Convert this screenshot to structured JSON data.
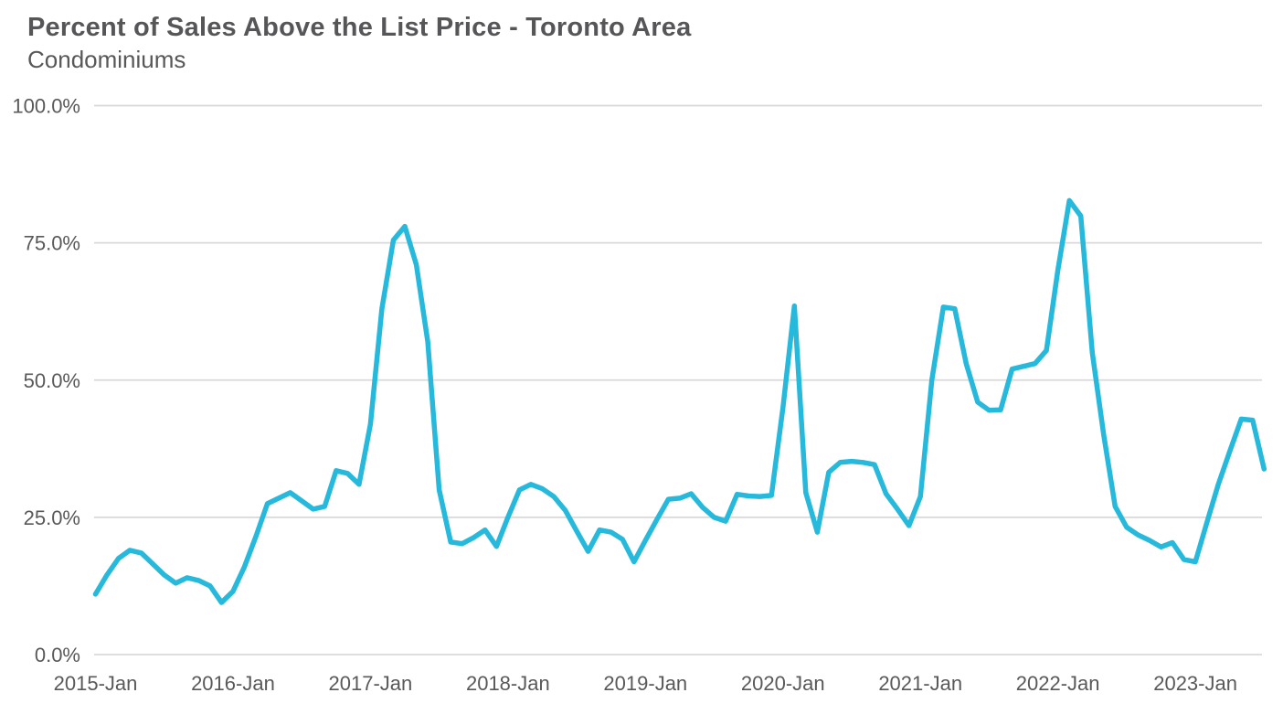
{
  "header": {
    "title": "Percent of Sales Above the List Price - Toronto Area",
    "subtitle": "Condominiums"
  },
  "chart_data": {
    "type": "line",
    "title": "Percent of Sales Above the List Price - Toronto Area",
    "subtitle": "Condominiums",
    "unit": "%",
    "x_start": "2015-Jan",
    "x_freq": "monthly",
    "x_end": "2023-Jul",
    "x_tick_labels": [
      "2015-Jan",
      "2016-Jan",
      "2017-Jan",
      "2018-Jan",
      "2019-Jan",
      "2020-Jan",
      "2021-Jan",
      "2022-Jan",
      "2023-Jan"
    ],
    "y_tick_labels": [
      "0.0%",
      "25.0%",
      "50.0%",
      "75.0%",
      "100.0%"
    ],
    "ylim": [
      0,
      100
    ],
    "grid": "horizontal",
    "legend": "none",
    "line_color": "#27b9dc",
    "grid_color": "#d9d9d9",
    "label_color": "#595959",
    "title_color": "#565659",
    "series": [
      {
        "name": "Percent of sales above list price (condominiums)",
        "values": [
          11.0,
          14.5,
          17.5,
          19.0,
          18.5,
          16.5,
          14.5,
          13.0,
          14.0,
          13.5,
          12.5,
          9.5,
          11.5,
          16.0,
          21.5,
          27.5,
          28.5,
          29.5,
          28.0,
          26.5,
          27.0,
          33.5,
          33.0,
          31.0,
          42.0,
          63.0,
          75.5,
          78.0,
          71.0,
          57.0,
          30.0,
          20.5,
          20.2,
          21.3,
          22.7,
          19.7,
          25.0,
          30.0,
          31.0,
          30.2,
          28.8,
          26.3,
          22.5,
          18.8,
          22.7,
          22.3,
          21.0,
          16.9,
          20.8,
          24.6,
          28.3,
          28.5,
          29.3,
          26.8,
          25.0,
          24.3,
          29.2,
          28.9,
          28.8,
          29.0,
          45.0,
          63.5,
          29.5,
          22.3,
          33.2,
          35.0,
          35.2,
          35.0,
          34.6,
          29.3,
          26.5,
          23.5,
          28.8,
          50.0,
          63.3,
          63.0,
          53.0,
          46.0,
          44.5,
          44.6,
          52.0,
          52.5,
          53.0,
          55.4,
          70.0,
          82.7,
          79.9,
          55.0,
          40.0,
          27.0,
          23.2,
          21.8,
          20.8,
          19.6,
          20.4,
          17.3,
          16.9,
          24.0,
          31.0,
          37.0,
          42.9,
          42.7,
          33.8
        ]
      }
    ]
  }
}
